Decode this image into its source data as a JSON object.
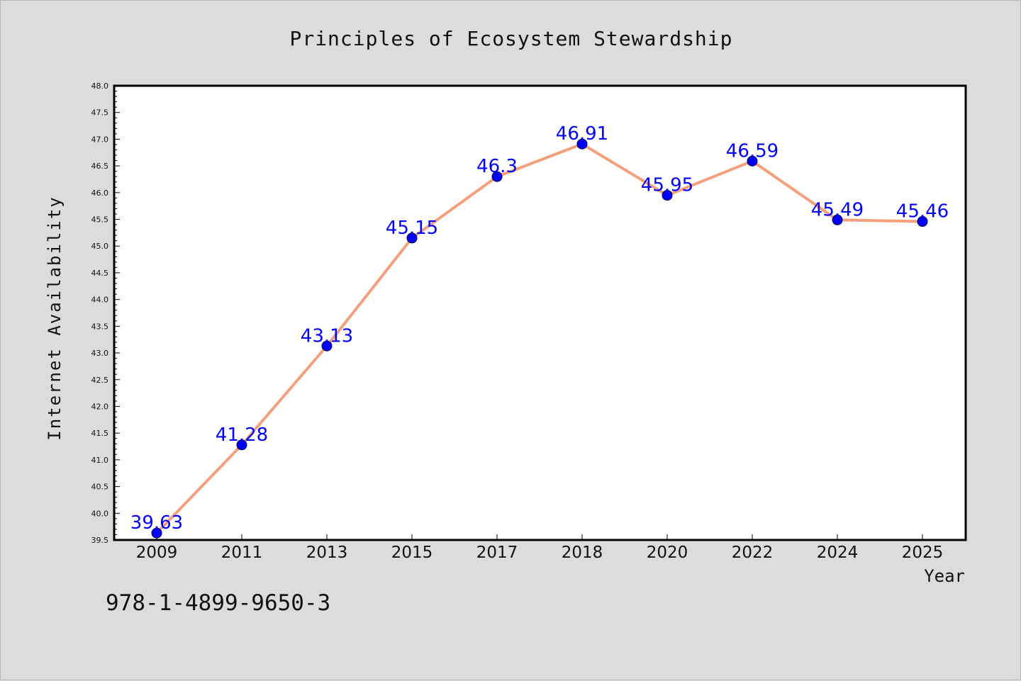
{
  "chart_data": {
    "type": "line",
    "title": "Principles of Ecosystem Stewardship",
    "xlabel": "Year",
    "ylabel": "Internet Availability",
    "categories": [
      "2009",
      "2011",
      "2013",
      "2015",
      "2017",
      "2018",
      "2020",
      "2022",
      "2024",
      "2025"
    ],
    "series": [
      {
        "values": [
          39.63,
          41.28,
          43.13,
          45.15,
          46.3,
          46.91,
          45.95,
          46.59,
          45.49,
          45.46
        ],
        "data_labels": [
          "39.63",
          "41.28",
          "43.13",
          "45.15",
          "46.3",
          "46.91",
          "45.95",
          "46.59",
          "45.49",
          "45.46"
        ],
        "line_color": "#f4a07c",
        "marker_color": "#0000ff"
      }
    ],
    "ylim": [
      39.5,
      48.0
    ],
    "yticks": [
      "39.5",
      "40.0",
      "40.5",
      "41.0",
      "41.5",
      "42.0",
      "42.5",
      "43.0",
      "43.5",
      "44.0",
      "44.5",
      "45.0",
      "45.5",
      "46.0",
      "46.5",
      "47.0",
      "47.5",
      "48.0"
    ],
    "grid": false,
    "legend": "none",
    "label_color": "#0000ff"
  },
  "footer": {
    "isbn": "978-1-4899-9650-3"
  }
}
